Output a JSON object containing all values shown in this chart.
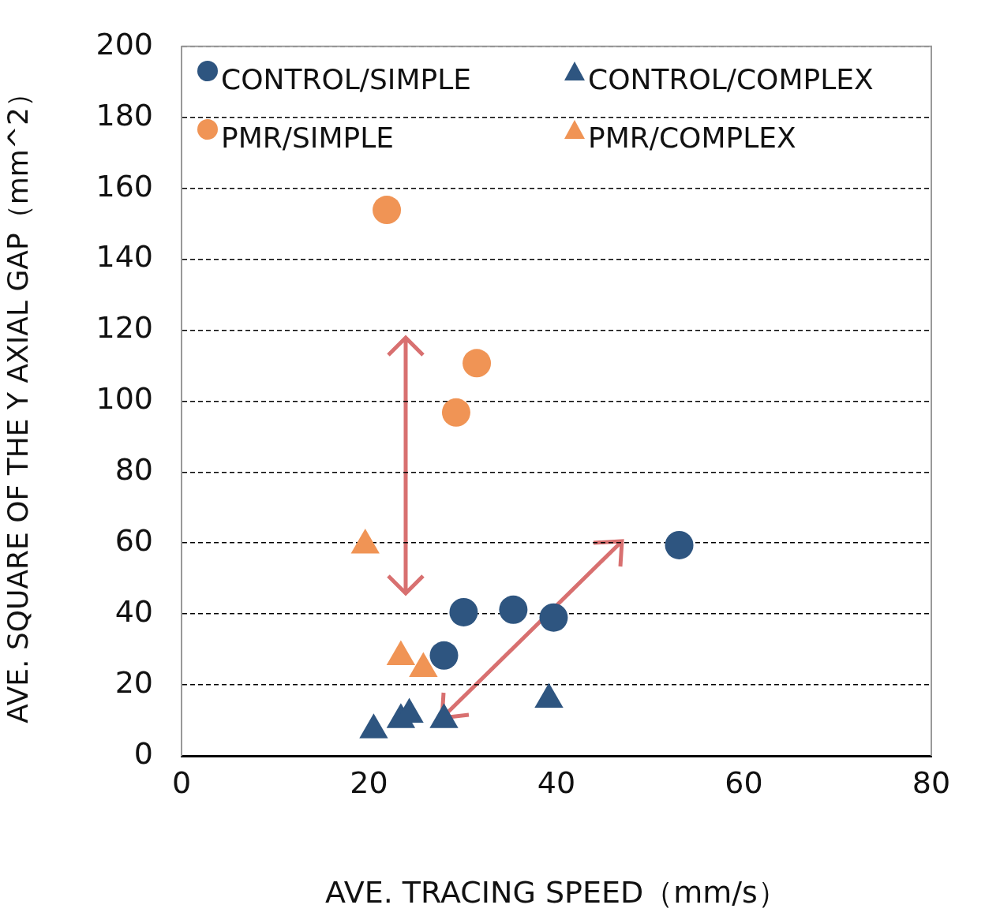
{
  "chart_data": {
    "type": "scatter",
    "xlabel": "AVE. TRACING SPEED（mm/s）",
    "ylabel": "AVE. SQUARE OF THE Y AXIAL GAP（mm^2）",
    "xlim": [
      0,
      80
    ],
    "xticks": [
      0,
      20,
      40,
      60,
      80
    ],
    "ylim": [
      0,
      200
    ],
    "yticks": [
      0,
      20,
      40,
      60,
      80,
      100,
      120,
      140,
      160,
      180,
      200
    ],
    "grid": "y",
    "legend": "top",
    "series": [
      {
        "name": "CONTROL/SIMPLE",
        "color": "#2e5580",
        "marker": "circle",
        "x": [
          30.1,
          35.4,
          39.7,
          28.0,
          53.1
        ],
        "values": [
          40.5,
          41.2,
          39.0,
          28.3,
          59.4
        ]
      },
      {
        "name": "CONTROL/COMPLEX",
        "color": "#2e5580",
        "marker": "triangle",
        "x": [
          20.5,
          23.4,
          24.3,
          28.0,
          39.2
        ],
        "values": [
          7.3,
          10.2,
          11.7,
          10.2,
          15.9
        ]
      },
      {
        "name": "PMR/SIMPLE",
        "color": "#f09455",
        "marker": "circle",
        "x": [
          21.9,
          31.5,
          29.3
        ],
        "values": [
          153.9,
          110.7,
          96.8
        ]
      },
      {
        "name": "PMR/COMPLEX",
        "color": "#f09455",
        "marker": "triangle",
        "x": [
          19.6,
          23.4,
          25.8
        ],
        "values": [
          59.4,
          27.9,
          24.6
        ]
      }
    ]
  }
}
